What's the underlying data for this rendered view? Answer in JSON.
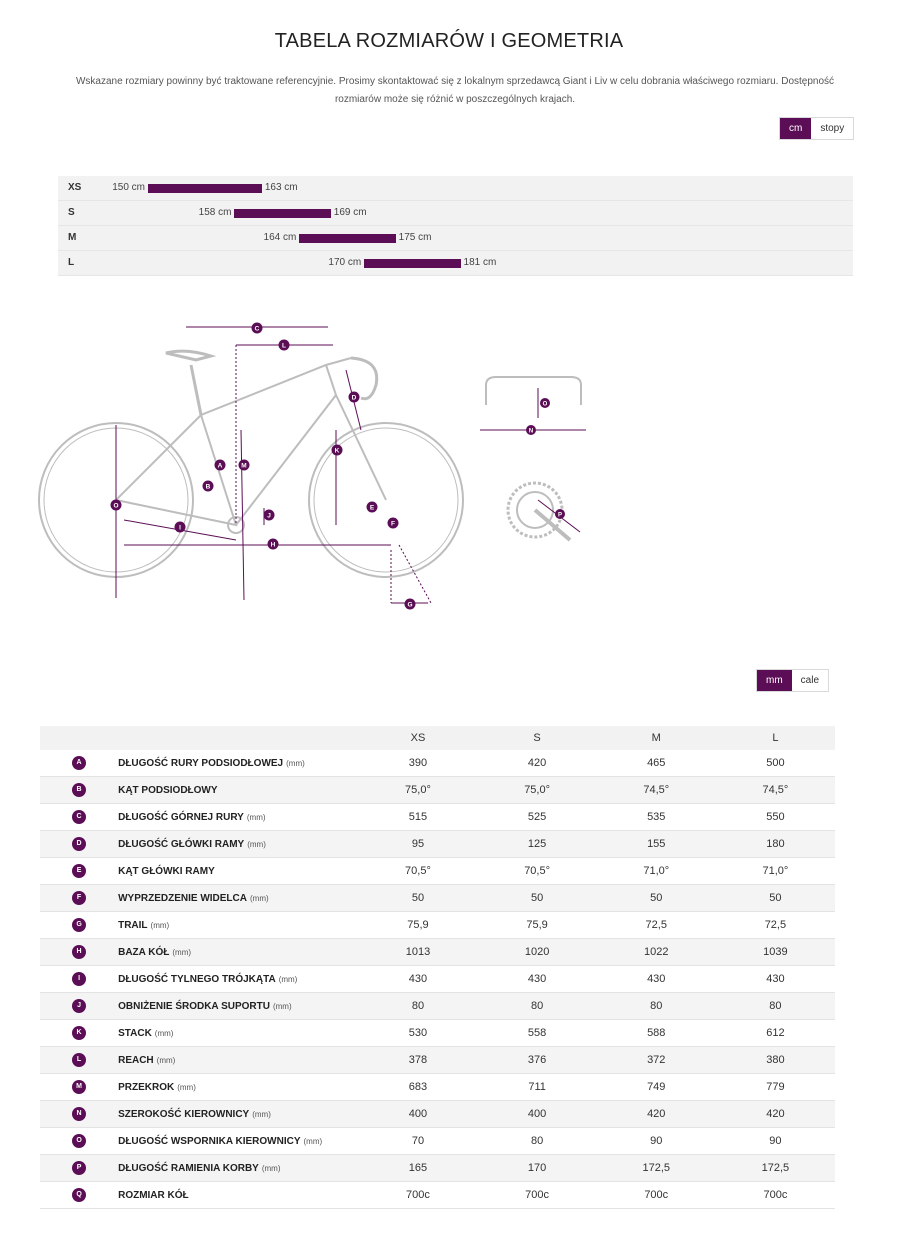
{
  "title": "TABELA ROZMIARÓW I GEOMETRIA",
  "intro_line1": "Wskazane rozmiary powinny być traktowane referencyjnie. Prosimy skontaktować się z lokalnym sprzedawcą Giant i Liv w celu dobrania właściwego rozmiaru. Dostępność",
  "intro_line2": "rozmiarów może się różnić w poszczególnych krajach.",
  "unit_toggle": {
    "cm": "cm",
    "feet": "stopy"
  },
  "measure_toggle": {
    "mm": "mm",
    "inches": "cale"
  },
  "colors": {
    "accent": "#5b0e55"
  },
  "size_chart": [
    {
      "size": "XS",
      "min": 150,
      "max": 163,
      "min_label": "150 cm",
      "max_label": "163 cm"
    },
    {
      "size": "S",
      "min": 158,
      "max": 169,
      "min_label": "158 cm",
      "max_label": "169 cm"
    },
    {
      "size": "M",
      "min": 164,
      "max": 175,
      "min_label": "164 cm",
      "max_label": "175 cm"
    },
    {
      "size": "L",
      "min": 170,
      "max": 181,
      "min_label": "170 cm",
      "max_label": "181 cm"
    }
  ],
  "diagram_letters": [
    "A",
    "B",
    "C",
    "D",
    "E",
    "F",
    "G",
    "H",
    "I",
    "J",
    "K",
    "L",
    "M",
    "N",
    "O",
    "P",
    "Q"
  ],
  "geometry": {
    "columns": [
      "XS",
      "S",
      "M",
      "L"
    ],
    "rows": [
      {
        "key": "A",
        "name": "DŁUGOŚĆ RURY PODSIODŁOWEJ",
        "unit": "(mm)",
        "values": [
          "390",
          "420",
          "465",
          "500"
        ]
      },
      {
        "key": "B",
        "name": "KĄT PODSIODŁOWY",
        "unit": "",
        "values": [
          "75,0°",
          "75,0°",
          "74,5°",
          "74,5°"
        ]
      },
      {
        "key": "C",
        "name": "DŁUGOŚĆ GÓRNEJ RURY",
        "unit": "(mm)",
        "values": [
          "515",
          "525",
          "535",
          "550"
        ]
      },
      {
        "key": "D",
        "name": "DŁUGOŚĆ GŁÓWKI RAMY",
        "unit": "(mm)",
        "values": [
          "95",
          "125",
          "155",
          "180"
        ]
      },
      {
        "key": "E",
        "name": "KĄT GŁÓWKI RAMY",
        "unit": "",
        "values": [
          "70,5°",
          "70,5°",
          "71,0°",
          "71,0°"
        ]
      },
      {
        "key": "F",
        "name": "WYPRZEDZENIE WIDELCA",
        "unit": "(mm)",
        "values": [
          "50",
          "50",
          "50",
          "50"
        ]
      },
      {
        "key": "G",
        "name": "TRAIL",
        "unit": "(mm)",
        "values": [
          "75,9",
          "75,9",
          "72,5",
          "72,5"
        ]
      },
      {
        "key": "H",
        "name": "BAZA KÓŁ",
        "unit": "(mm)",
        "values": [
          "1013",
          "1020",
          "1022",
          "1039"
        ]
      },
      {
        "key": "I",
        "name": "DŁUGOŚĆ TYLNEGO TRÓJKĄTA",
        "unit": "(mm)",
        "values": [
          "430",
          "430",
          "430",
          "430"
        ]
      },
      {
        "key": "J",
        "name": "OBNIŻENIE ŚRODKA SUPORTU",
        "unit": "(mm)",
        "values": [
          "80",
          "80",
          "80",
          "80"
        ]
      },
      {
        "key": "K",
        "name": "STACK",
        "unit": "(mm)",
        "values": [
          "530",
          "558",
          "588",
          "612"
        ]
      },
      {
        "key": "L",
        "name": "REACH",
        "unit": "(mm)",
        "values": [
          "378",
          "376",
          "372",
          "380"
        ]
      },
      {
        "key": "M",
        "name": "PRZEKROK",
        "unit": "(mm)",
        "values": [
          "683",
          "711",
          "749",
          "779"
        ]
      },
      {
        "key": "N",
        "name": "SZEROKOŚĆ KIEROWNICY",
        "unit": "(mm)",
        "values": [
          "400",
          "400",
          "420",
          "420"
        ]
      },
      {
        "key": "O",
        "name": "DŁUGOŚĆ WSPORNIKA KIEROWNICY",
        "unit": "(mm)",
        "values": [
          "70",
          "80",
          "90",
          "90"
        ]
      },
      {
        "key": "P",
        "name": "DŁUGOŚĆ RAMIENIA KORBY",
        "unit": "(mm)",
        "values": [
          "165",
          "170",
          "172,5",
          "172,5"
        ]
      },
      {
        "key": "Q",
        "name": "ROZMIAR KÓŁ",
        "unit": "",
        "values": [
          "700c",
          "700c",
          "700c",
          "700c"
        ]
      }
    ]
  }
}
